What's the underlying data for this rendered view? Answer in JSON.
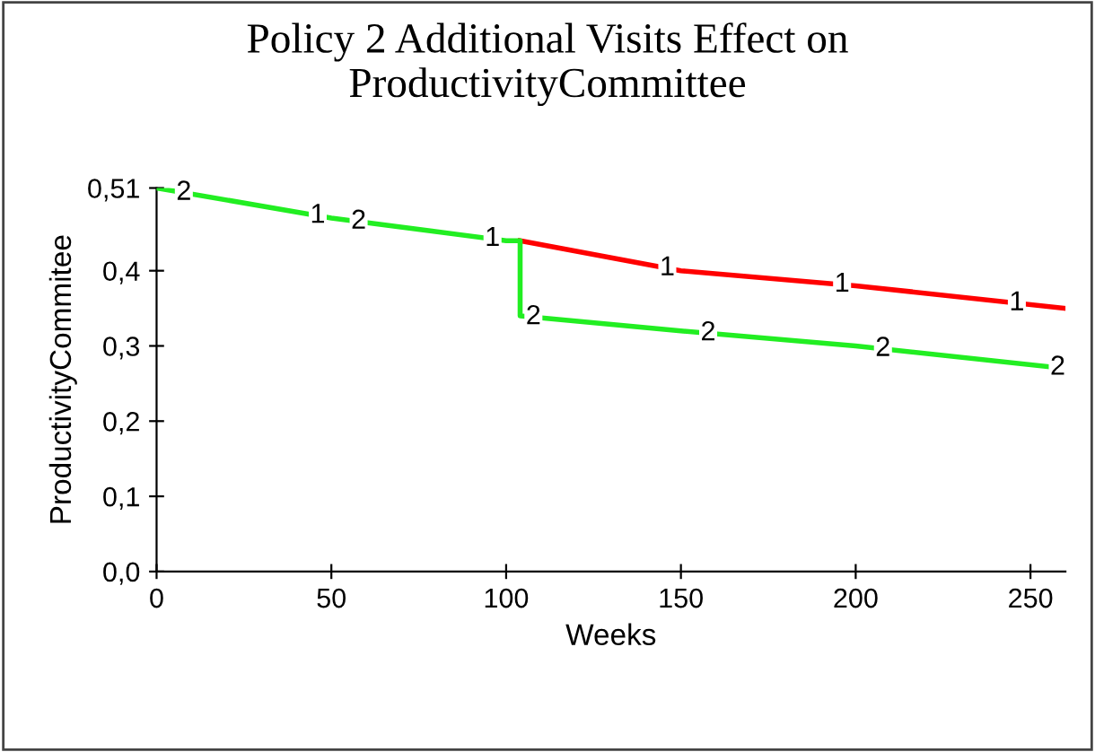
{
  "chart_data": {
    "type": "line",
    "title": "Policy 2 Additional Visits Effect on\nProductivityCommittee",
    "xlabel": "Weeks",
    "ylabel": "ProductivityCommitee",
    "series": [
      {
        "name": "1",
        "color": "#ff0000",
        "x": [
          104,
          150,
          200,
          260
        ],
        "values": [
          0.44,
          0.4,
          0.38,
          0.35
        ]
      },
      {
        "name": "2",
        "color": "#22ee22",
        "x": [
          0,
          50,
          100,
          104,
          104,
          150,
          200,
          260
        ],
        "values": [
          0.51,
          0.47,
          0.44,
          0.44,
          0.34,
          0.32,
          0.3,
          0.27
        ]
      }
    ],
    "xlim": [
      0,
      260
    ],
    "xticks": [
      0,
      50,
      100,
      150,
      200,
      250
    ],
    "ylim": [
      0,
      0.51
    ],
    "yticks": [
      {
        "value": 0,
        "label": "0,0"
      },
      {
        "value": 0.1,
        "label": "0,1"
      },
      {
        "value": 0.2,
        "label": "0,2"
      },
      {
        "value": 0.3,
        "label": "0,3"
      },
      {
        "value": 0.4,
        "label": "0,4"
      },
      {
        "value": 0.51,
        "label": "0,51"
      }
    ],
    "grid": false,
    "legend": false
  }
}
